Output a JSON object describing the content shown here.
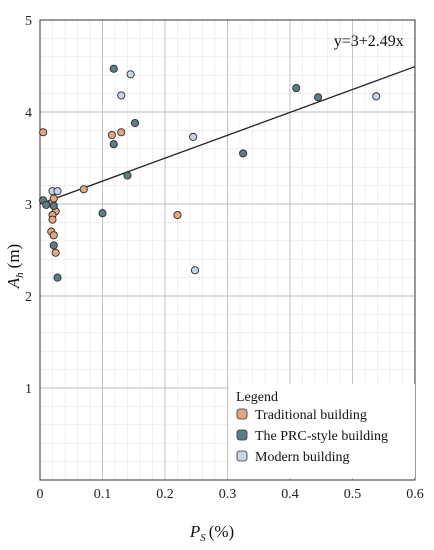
{
  "chart_data": {
    "type": "scatter",
    "xlabel": "P",
    "xlabel_sub": "S",
    "xlabel_unit": "(%)",
    "ylabel": "A",
    "ylabel_sub": "h",
    "ylabel_unit": "(m)",
    "xlim": [
      0,
      0.6
    ],
    "ylim": [
      0,
      5
    ],
    "x_ticks": [
      "0",
      "0.1",
      "0.2",
      "0.3",
      "0.4",
      "0.5",
      "0.6"
    ],
    "y_ticks": [
      "1",
      "2",
      "3",
      "4",
      "5"
    ],
    "grid": true,
    "legend": {
      "title": "Legend",
      "placement": "bottom-right"
    },
    "fit_line": {
      "label": "y=3+2.49x",
      "intercept": 3,
      "slope": 2.49
    },
    "series": [
      {
        "name": "Traditional building",
        "color": "#e0a782",
        "points": [
          {
            "x": 0.005,
            "y": 3.78
          },
          {
            "x": 0.02,
            "y": 3.02
          },
          {
            "x": 0.022,
            "y": 3.06
          },
          {
            "x": 0.025,
            "y": 2.92
          },
          {
            "x": 0.02,
            "y": 2.88
          },
          {
            "x": 0.02,
            "y": 2.83
          },
          {
            "x": 0.018,
            "y": 2.7
          },
          {
            "x": 0.022,
            "y": 2.66
          },
          {
            "x": 0.025,
            "y": 2.47
          },
          {
            "x": 0.07,
            "y": 3.16
          },
          {
            "x": 0.115,
            "y": 3.75
          },
          {
            "x": 0.13,
            "y": 3.78
          },
          {
            "x": 0.22,
            "y": 2.88
          }
        ]
      },
      {
        "name": "The PRC-style building",
        "color": "#5e7c84",
        "points": [
          {
            "x": 0.005,
            "y": 3.04
          },
          {
            "x": 0.01,
            "y": 2.99
          },
          {
            "x": 0.022,
            "y": 2.98
          },
          {
            "x": 0.022,
            "y": 2.55
          },
          {
            "x": 0.028,
            "y": 2.2
          },
          {
            "x": 0.1,
            "y": 2.9
          },
          {
            "x": 0.118,
            "y": 4.47
          },
          {
            "x": 0.118,
            "y": 3.65
          },
          {
            "x": 0.14,
            "y": 3.31
          },
          {
            "x": 0.152,
            "y": 3.88
          },
          {
            "x": 0.325,
            "y": 3.55
          },
          {
            "x": 0.41,
            "y": 4.26
          },
          {
            "x": 0.445,
            "y": 4.16
          }
        ]
      },
      {
        "name": "Modern building",
        "color": "#c7d4e8",
        "points": [
          {
            "x": 0.02,
            "y": 3.14
          },
          {
            "x": 0.028,
            "y": 3.14
          },
          {
            "x": 0.13,
            "y": 4.18
          },
          {
            "x": 0.145,
            "y": 4.41
          },
          {
            "x": 0.245,
            "y": 3.73
          },
          {
            "x": 0.248,
            "y": 2.28
          },
          {
            "x": 0.538,
            "y": 4.17
          }
        ]
      }
    ]
  }
}
